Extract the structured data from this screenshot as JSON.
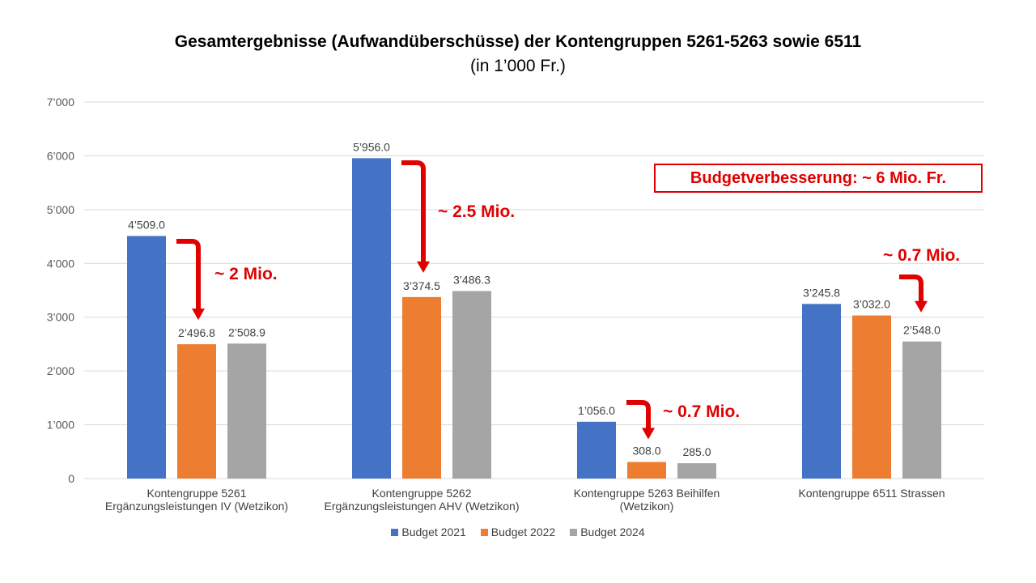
{
  "chart_data": {
    "type": "bar",
    "title": "Gesamtergebnisse (Aufwandüberschüsse) der Kontengruppen 5261-5263 sowie 6511",
    "subtitle": "(in 1’000 Fr.)",
    "categories": [
      [
        "Kontengruppe 5261",
        "Ergänzungsleistungen IV (Wetzikon)"
      ],
      [
        "Kontengruppe 5262",
        "Ergänzungsleistungen AHV (Wetzikon)"
      ],
      [
        "Kontengruppe 5263 Beihilfen",
        "(Wetzikon)"
      ],
      [
        "Kontengruppe 6511 Strassen"
      ]
    ],
    "series": [
      {
        "name": "Budget 2021",
        "color": "#4472c4",
        "values": [
          4509.0,
          5956.0,
          1056.0,
          3245.8
        ],
        "labels": [
          "4’509.0",
          "5’956.0",
          "1’056.0",
          "3’245.8"
        ]
      },
      {
        "name": "Budget 2022",
        "color": "#ed7d31",
        "values": [
          2496.8,
          3374.5,
          308.0,
          3032.0
        ],
        "labels": [
          "2’496.8",
          "3’374.5",
          "308.0",
          "3’032.0"
        ]
      },
      {
        "name": "Budget 2024",
        "color": "#a5a5a5",
        "values": [
          2508.9,
          3486.3,
          285.0,
          2548.0
        ],
        "labels": [
          "2’508.9",
          "3’486.3",
          "285.0",
          "2’548.0"
        ]
      }
    ],
    "ylim": [
      0,
      7000
    ],
    "yticks": [
      0,
      1000,
      2000,
      3000,
      4000,
      5000,
      6000,
      7000
    ],
    "ytick_labels": [
      "0",
      "1’000",
      "2’000",
      "3’000",
      "4’000",
      "5’000",
      "6’000",
      "7’000"
    ],
    "grid": true,
    "legend_position": "bottom",
    "annotations": [
      {
        "group": 0,
        "text": "~ 2 Mio."
      },
      {
        "group": 1,
        "text": "~ 2.5 Mio."
      },
      {
        "group": 2,
        "text": "~ 0.7 Mio."
      },
      {
        "group": 3,
        "text": "~ 0.7 Mio."
      }
    ],
    "annotation_color": "#e00000",
    "callout": "Budgetverbesserung:  ~ 6 Mio. Fr."
  }
}
